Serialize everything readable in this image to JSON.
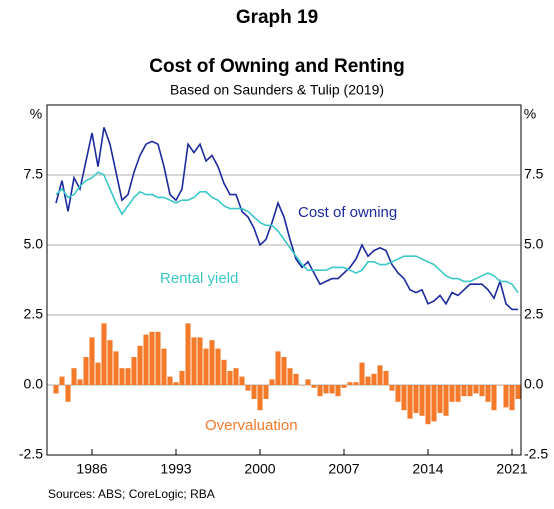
{
  "chart_data": {
    "type": "line_bar",
    "title": "Graph 19",
    "subtitle": "Cost of Owning and Renting",
    "note": "Based on Saunders & Tulip (2019)",
    "source": "Sources: ABS; CoreLogic; RBA",
    "y_unit": "%",
    "x": [
      1983.0,
      1983.5,
      1984.0,
      1984.5,
      1985.0,
      1985.5,
      1986.0,
      1986.5,
      1987.0,
      1987.5,
      1988.0,
      1988.5,
      1989.0,
      1989.5,
      1990.0,
      1990.5,
      1991.0,
      1991.5,
      1992.0,
      1992.5,
      1993.0,
      1993.5,
      1994.0,
      1994.5,
      1995.0,
      1995.5,
      1996.0,
      1996.5,
      1997.0,
      1997.5,
      1998.0,
      1998.5,
      1999.0,
      1999.5,
      2000.0,
      2000.5,
      2001.0,
      2001.5,
      2002.0,
      2002.5,
      2003.0,
      2003.5,
      2004.0,
      2004.5,
      2005.0,
      2005.5,
      2006.0,
      2006.5,
      2007.0,
      2007.5,
      2008.0,
      2008.5,
      2009.0,
      2009.5,
      2010.0,
      2010.5,
      2011.0,
      2011.5,
      2012.0,
      2012.5,
      2013.0,
      2013.5,
      2014.0,
      2014.5,
      2015.0,
      2015.5,
      2016.0,
      2016.5,
      2017.0,
      2017.5,
      2018.0,
      2018.5,
      2019.0,
      2019.5,
      2020.0,
      2020.5,
      2021.0,
      2021.5
    ],
    "series": [
      {
        "name": "Cost of owning",
        "color": "#1b2a9c",
        "kind": "line",
        "values": [
          6.5,
          7.3,
          6.2,
          7.4,
          7.0,
          8.0,
          9.0,
          7.8,
          9.2,
          8.6,
          7.6,
          6.6,
          6.8,
          7.6,
          8.2,
          8.6,
          8.7,
          8.6,
          7.8,
          6.8,
          6.6,
          7.0,
          8.6,
          8.3,
          8.6,
          8.0,
          8.2,
          7.8,
          7.2,
          6.8,
          6.8,
          6.2,
          6.0,
          5.6,
          5.0,
          5.2,
          5.8,
          6.5,
          6.0,
          5.2,
          4.5,
          4.2,
          4.4,
          4.0,
          3.6,
          3.7,
          3.8,
          3.8,
          4.0,
          4.2,
          4.5,
          5.0,
          4.6,
          4.8,
          4.9,
          4.8,
          4.3,
          4.0,
          3.8,
          3.4,
          3.3,
          3.4,
          2.9,
          3.0,
          3.2,
          2.9,
          3.3,
          3.2,
          3.4,
          3.6,
          3.6,
          3.6,
          3.4,
          3.1,
          3.7,
          2.9,
          2.7,
          2.7
        ]
      },
      {
        "name": "Rental yield",
        "color": "#3cc8c8",
        "kind": "line",
        "values": [
          6.8,
          7.0,
          6.7,
          6.8,
          7.1,
          7.3,
          7.4,
          7.6,
          7.5,
          7.0,
          6.5,
          6.1,
          6.4,
          6.7,
          6.9,
          6.8,
          6.8,
          6.7,
          6.7,
          6.6,
          6.5,
          6.6,
          6.6,
          6.7,
          6.9,
          6.9,
          6.7,
          6.6,
          6.4,
          6.3,
          6.3,
          6.3,
          6.2,
          6.0,
          5.8,
          5.7,
          5.7,
          5.5,
          5.2,
          4.9,
          4.6,
          4.3,
          4.1,
          4.1,
          4.1,
          4.1,
          4.2,
          4.2,
          4.2,
          4.1,
          4.0,
          4.1,
          4.4,
          4.4,
          4.3,
          4.3,
          4.4,
          4.5,
          4.6,
          4.6,
          4.6,
          4.5,
          4.4,
          4.3,
          4.1,
          3.9,
          3.8,
          3.8,
          3.7,
          3.7,
          3.8,
          3.9,
          4.0,
          3.9,
          3.7,
          3.7,
          3.6,
          3.3
        ]
      },
      {
        "name": "Overvaluation",
        "color": "#f47a2a",
        "kind": "bar",
        "values": [
          -0.3,
          0.3,
          -0.6,
          0.6,
          0.2,
          1.0,
          1.7,
          0.8,
          2.2,
          1.6,
          1.2,
          0.6,
          0.6,
          1.0,
          1.4,
          1.8,
          1.9,
          1.9,
          1.3,
          0.3,
          0.1,
          0.5,
          2.2,
          1.7,
          1.7,
          1.3,
          1.6,
          1.3,
          0.9,
          0.5,
          0.6,
          0.3,
          -0.2,
          -0.5,
          -0.9,
          -0.5,
          0.2,
          1.2,
          1.0,
          0.6,
          0.4,
          0.0,
          0.2,
          -0.1,
          -0.4,
          -0.3,
          -0.3,
          -0.4,
          -0.1,
          0.1,
          0.1,
          0.8,
          0.3,
          0.4,
          0.7,
          0.5,
          -0.2,
          -0.6,
          -0.9,
          -1.2,
          -1.0,
          -1.1,
          -1.4,
          -1.3,
          -1.0,
          -1.1,
          -0.6,
          -0.6,
          -0.4,
          -0.4,
          -0.3,
          -0.4,
          -0.6,
          -0.9,
          0.0,
          -0.8,
          -0.9,
          -0.5
        ]
      }
    ],
    "xlim": [
      1982.25,
      2021.75
    ],
    "xticks": [
      1986,
      1993,
      2000,
      2007,
      2014,
      2021
    ],
    "ylim": [
      -2.5,
      10
    ],
    "yticks": [
      {
        "value": -2.5,
        "label": "-2.5"
      },
      {
        "value": 0,
        "label": "0.0"
      },
      {
        "value": 2.5,
        "label": "2.5"
      },
      {
        "value": 5,
        "label": "5.0"
      },
      {
        "value": 7.5,
        "label": "7.5"
      }
    ],
    "grid": true
  }
}
